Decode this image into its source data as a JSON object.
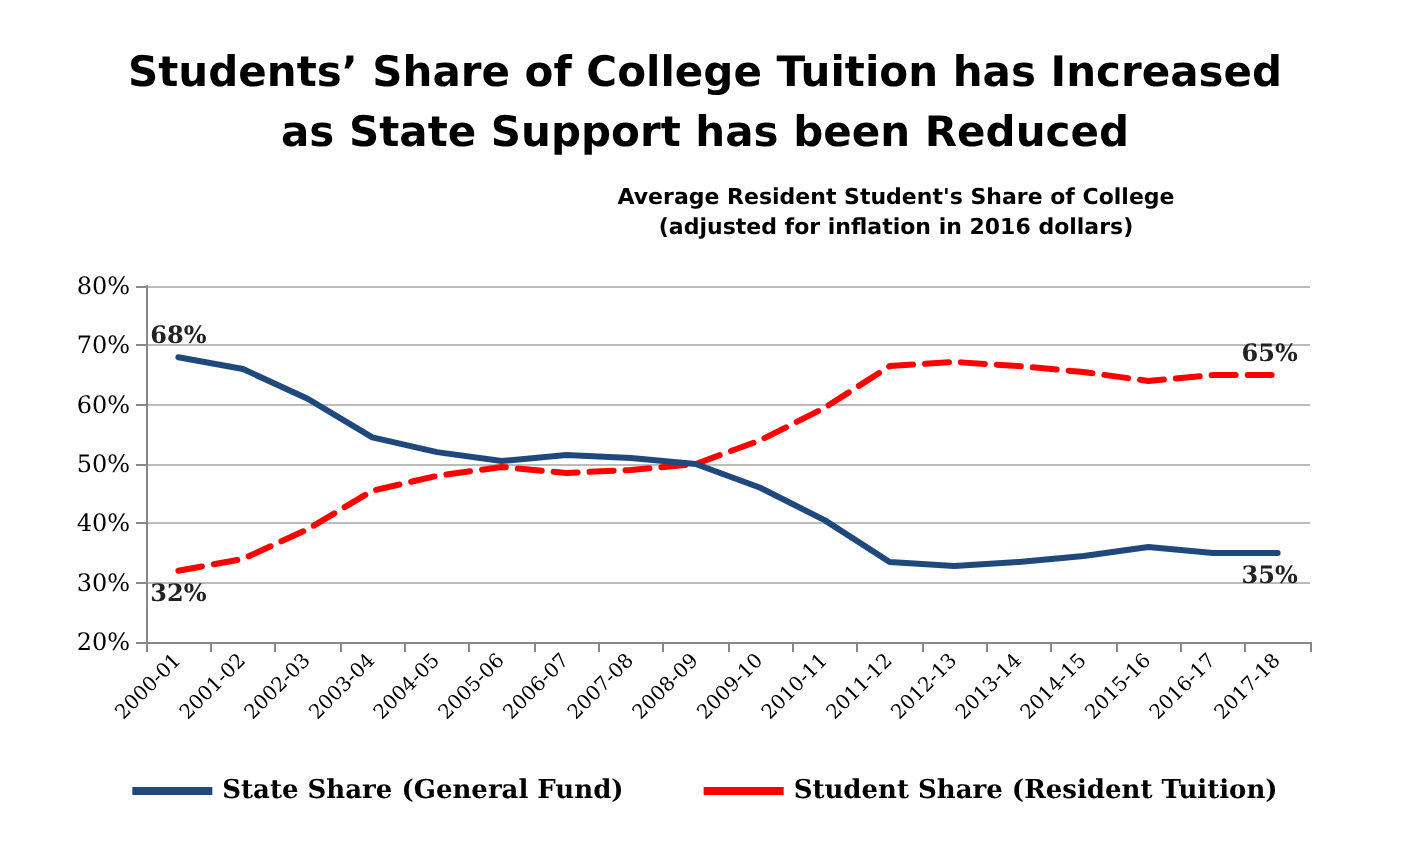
{
  "chart_data": {
    "type": "line",
    "title": "Students’ Share of College Tuition has Increased\nas State Support has been Reduced",
    "subtitle": "Average Resident Student's Share of College\n(adjusted for inflation in 2016 dollars)",
    "categories": [
      "2000-01",
      "2001-02",
      "2002-03",
      "2003-04",
      "2004-05",
      "2005-06",
      "2006-07",
      "2007-08",
      "2008-09",
      "2009-10",
      "2010-11",
      "2011-12",
      "2012-13",
      "2013-14",
      "2014-15",
      "2015-16",
      "2016-17",
      "2017-18"
    ],
    "series": [
      {
        "name": "State Share (General Fund)",
        "color": "#1f497d",
        "line_style": "solid",
        "values": [
          68,
          66,
          61,
          54.5,
          52,
          50.5,
          51.5,
          51,
          50,
          46,
          40.5,
          33.5,
          32.8,
          33.5,
          34.5,
          36,
          35,
          35
        ],
        "value_labels": [
          "68%",
          null,
          null,
          null,
          null,
          null,
          null,
          null,
          null,
          null,
          null,
          null,
          null,
          null,
          null,
          null,
          null,
          "35%"
        ]
      },
      {
        "name": "Student Share (Resident Tuition)",
        "color": "#ff0000",
        "line_style": "dashed",
        "values": [
          32,
          34,
          39,
          45.5,
          48,
          49.5,
          48.5,
          49,
          50,
          54,
          59.5,
          66.5,
          67.2,
          66.5,
          65.5,
          64,
          65,
          65
        ],
        "value_labels": [
          "32%",
          null,
          null,
          null,
          null,
          null,
          null,
          null,
          null,
          null,
          null,
          null,
          null,
          null,
          null,
          null,
          null,
          "65%"
        ]
      }
    ],
    "ylim": [
      20,
      80
    ],
    "yticks": [
      {
        "value": 20,
        "label": "20%"
      },
      {
        "value": 30,
        "label": "30%"
      },
      {
        "value": 40,
        "label": "40%"
      },
      {
        "value": 50,
        "label": "50%"
      },
      {
        "value": 60,
        "label": "60%"
      },
      {
        "value": 70,
        "label": "70%"
      },
      {
        "value": 80,
        "label": "80%"
      }
    ],
    "grid": "y",
    "legend": "bottom",
    "marker": "none"
  }
}
